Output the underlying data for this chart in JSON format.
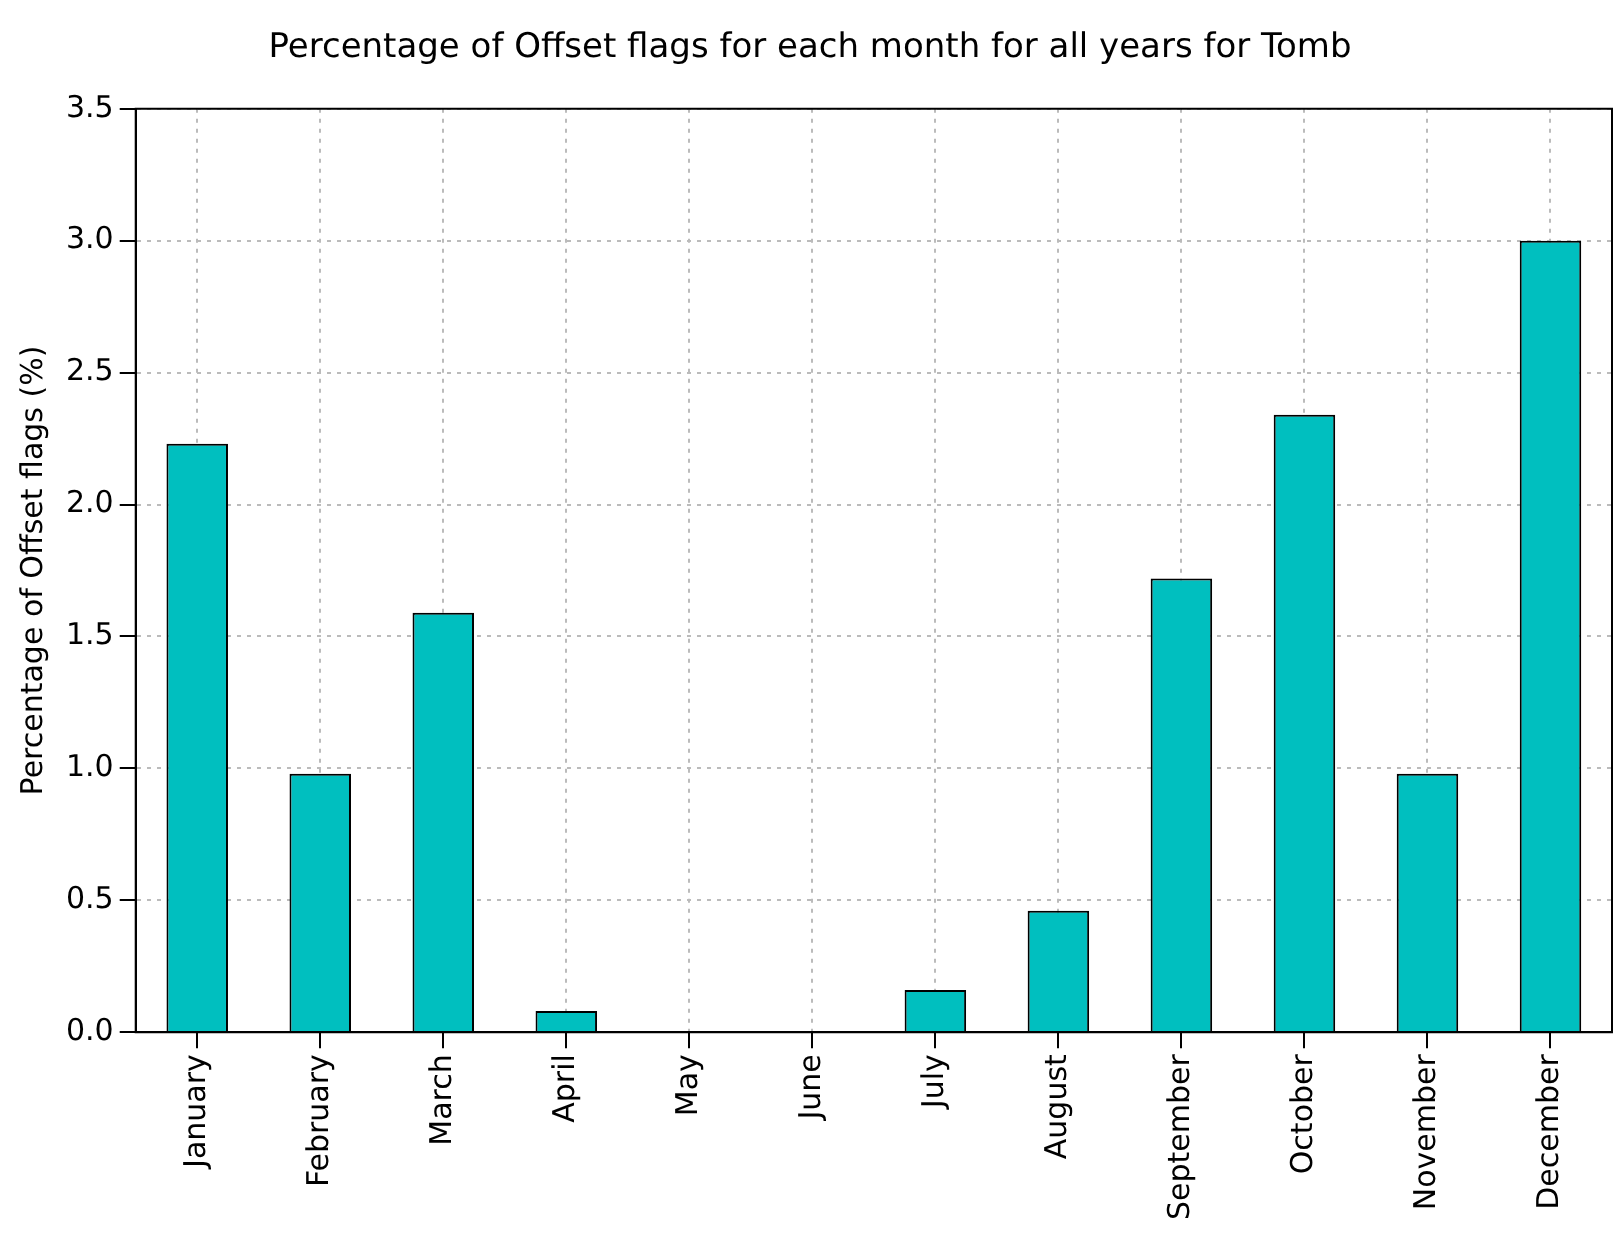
{
  "chart_data": {
    "type": "bar",
    "title": "Percentage of Offset flags for each month for all years for Tomb",
    "ylabel": "Percentage of Offset flags (%)",
    "categories": [
      "January",
      "February",
      "March",
      "April",
      "May",
      "June",
      "July",
      "August",
      "September",
      "October",
      "November",
      "December"
    ],
    "values": [
      2.23,
      0.98,
      1.59,
      0.08,
      0,
      0,
      0.16,
      0.46,
      1.72,
      2.34,
      0.98,
      3.0
    ],
    "color": "#00bfbf",
    "ylim": [
      0,
      3.5
    ],
    "yticks": [
      {
        "value": 0,
        "label": "0.0"
      },
      {
        "value": 0.5,
        "label": "0.5"
      },
      {
        "value": 1,
        "label": "1.0"
      },
      {
        "value": 1.5,
        "label": "1.5"
      },
      {
        "value": 2,
        "label": "2.0"
      },
      {
        "value": 2.5,
        "label": "2.5"
      },
      {
        "value": 3,
        "label": "3.0"
      },
      {
        "value": 3.5,
        "label": "3.5"
      }
    ],
    "grid": true
  }
}
